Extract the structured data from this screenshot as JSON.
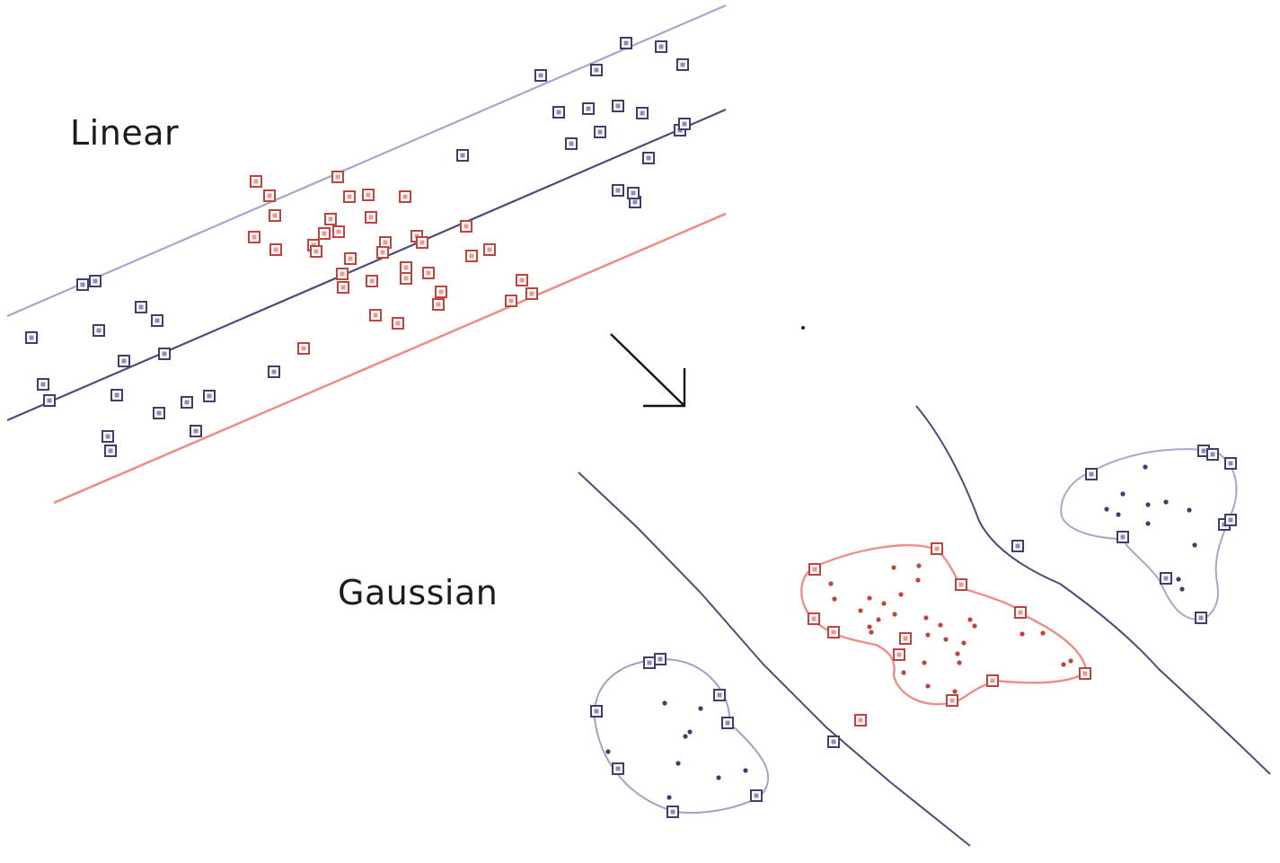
{
  "labels": {
    "linear": "Linear",
    "gaussian": "Gaussian"
  },
  "colors": {
    "class_a": "#8a8fb8",
    "class_a_dark": "#3d3f6e",
    "class_b": "#e89a94",
    "class_b_dark": "#c0443c",
    "boundary_main": "#4a4c7a",
    "margin_upper": "#a4a6cc",
    "margin_lower": "#ec8f88",
    "arrow": "#111111"
  },
  "icons": {
    "support_vector": "square-marker",
    "sample_point": "dot-marker",
    "transform": "arrow-down-right-icon"
  }
}
